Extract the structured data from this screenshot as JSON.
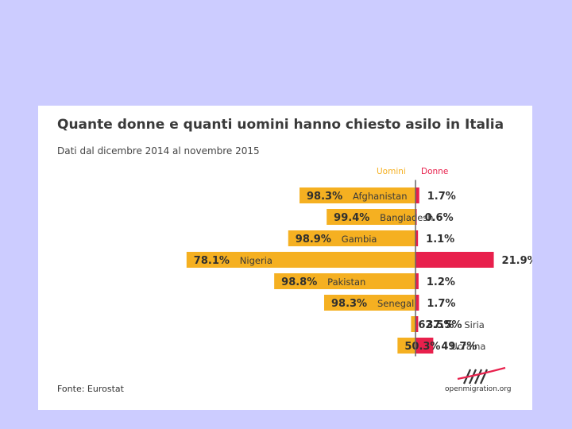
{
  "chart_data": {
    "type": "bar",
    "title": "Quante donne e quanti uomini hanno chiesto asilo in Italia",
    "subtitle": "Dati dal dicembre 2014 al novembre 2015",
    "categories": [
      "Afghanistan",
      "Bangladesh",
      "Gambia",
      "Nigeria",
      "Pakistan",
      "Senegal",
      "Siria",
      "Ucraina"
    ],
    "series": [
      {
        "name": "Uomini",
        "values": [
          98.3,
          99.4,
          98.9,
          78.1,
          98.8,
          98.3,
          62.5,
          50.3
        ],
        "labels": [
          "98.3%",
          "99.4%",
          "98.9%",
          "78.1%",
          "98.8%",
          "98.3%",
          "62.5%",
          "50.3%"
        ],
        "color": "#f5b021"
      },
      {
        "name": "Donne",
        "values": [
          1.7,
          0.6,
          1.1,
          21.9,
          1.2,
          1.7,
          37.5,
          49.7
        ],
        "labels": [
          "1.7%",
          "0.6%",
          "1.1%",
          "21.9%",
          "1.2%",
          "1.7%",
          "37.5%",
          "49.7%"
        ],
        "color": "#e8204c"
      }
    ],
    "bar_length": [
      [
        33,
        62
      ],
      [
        25,
        58
      ],
      [
        36,
        64
      ],
      [
        82,
        100
      ],
      [
        40,
        72
      ],
      [
        26,
        57
      ],
      [
        2,
        2
      ],
      [
        10,
        10
      ]
    ],
    "axis_color": "#666666",
    "source": "Fonte: Eurostat",
    "brand": "openmigration.org"
  }
}
